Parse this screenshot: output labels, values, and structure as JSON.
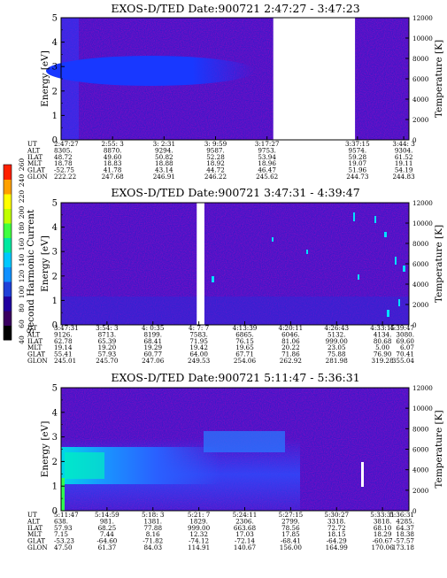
{
  "colorbar": {
    "label": "Second Harmonic Current",
    "ticks": [
      "40",
      "60",
      "80",
      "100",
      "120",
      "140",
      "160",
      "180",
      "200",
      "220",
      "240",
      "260"
    ],
    "colors": [
      "#000000",
      "#3a0060",
      "#2000a0",
      "#2040d8",
      "#1090ff",
      "#00c8ff",
      "#00e8a0",
      "#40ff40",
      "#c0ff00",
      "#ffff00",
      "#ffa000",
      "#ff2000"
    ]
  },
  "chart_data": [
    {
      "type": "heatmap",
      "title": "EXOS-D/TED   Date:900721   2:47:27 - 3:47:23",
      "ylabel": "Energy [eV]",
      "ylabel2": "Temperature [K]",
      "ylim": [
        0,
        5
      ],
      "y2lim": [
        0,
        12000
      ],
      "yticks": [
        "0",
        "1",
        "2",
        "3",
        "4",
        "5"
      ],
      "y2ticks": [
        "0",
        "2000",
        "4000",
        "6000",
        "8000",
        "10000",
        "12000"
      ],
      "gaps": [
        [
          0.61,
          0.845
        ]
      ],
      "row_labels": [
        "UT",
        "ALT",
        "ILAT",
        "MLT",
        "GLAT",
        "GLON"
      ],
      "columns": [
        {
          "x": 0.0,
          "vals": [
            "2:47:27",
            "8305.",
            "48.72",
            "18.78",
            "-52.75",
            "222.22"
          ]
        },
        {
          "x": 0.148,
          "vals": [
            "2:55: 3",
            "8870.",
            "49.60",
            "18.83",
            "41.78",
            "247.68"
          ]
        },
        {
          "x": 0.296,
          "vals": [
            "3: 2:31",
            "9294.",
            "50.82",
            "18.88",
            "43.14",
            "246.91"
          ]
        },
        {
          "x": 0.444,
          "vals": [
            "3: 9:59",
            "9587.",
            "52.28",
            "18.92",
            "44.72",
            "246.22"
          ]
        },
        {
          "x": 0.592,
          "vals": [
            "3:17:27",
            "9753.",
            "53.94",
            "18.96",
            "46.47",
            "245.62"
          ]
        },
        {
          "x": 0.852,
          "vals": [
            "3:37:15",
            "9574.",
            "59.28",
            "19.07",
            "51.96",
            "244.73"
          ]
        },
        {
          "x": 0.985,
          "vals": [
            "3:44: 3",
            "9304.",
            "61.52",
            "19.11",
            "54.19",
            "244.83"
          ]
        }
      ]
    },
    {
      "type": "heatmap",
      "title": "EXOS-D/TED   Date:900721   3:47:31 - 4:39:47",
      "ylabel": "Energy [eV]",
      "ylabel2": "Temperature [K]",
      "ylim": [
        0,
        5
      ],
      "y2lim": [
        0,
        12000
      ],
      "yticks": [
        "0",
        "1",
        "2",
        "3",
        "4",
        "5"
      ],
      "y2ticks": [
        "0",
        "2000",
        "4000",
        "6000",
        "8000",
        "10000",
        "12000"
      ],
      "gaps": [
        [
          0.39,
          0.412
        ]
      ],
      "row_labels": [
        "UT",
        "ALT",
        "ILAT",
        "MLT",
        "GLAT",
        "GLON"
      ],
      "columns": [
        {
          "x": 0.0,
          "vals": [
            "3:47:31",
            "9126.",
            "62.78",
            "19.14",
            "55.41",
            "245.01"
          ]
        },
        {
          "x": 0.132,
          "vals": [
            "3:54: 3",
            "8713.",
            "65.39",
            "19.20",
            "57.93",
            "245.70"
          ]
        },
        {
          "x": 0.264,
          "vals": [
            "4: 0:35",
            "8199.",
            "68.41",
            "19.29",
            "60.77",
            "247.06"
          ]
        },
        {
          "x": 0.396,
          "vals": [
            "4: 7: 7",
            "7583.",
            "71.95",
            "19.42",
            "64.00",
            "249.53"
          ]
        },
        {
          "x": 0.528,
          "vals": [
            "4:13:39",
            "6865.",
            "76.15",
            "19.65",
            "67.71",
            "254.06"
          ]
        },
        {
          "x": 0.66,
          "vals": [
            "4:20:11",
            "6046.",
            "81.06",
            "20.22",
            "71.86",
            "262.92"
          ]
        },
        {
          "x": 0.792,
          "vals": [
            "4:26:43",
            "5132.",
            "999.00",
            "23.05",
            "75.88",
            "281.98"
          ]
        },
        {
          "x": 0.924,
          "vals": [
            "4:33:15",
            "4134.",
            "80.68",
            "5.00",
            "76.90",
            "319.28"
          ]
        },
        {
          "x": 1.0,
          "vals": [
            "4:39:47",
            "3080.",
            "69.60",
            "6.07",
            "70.41",
            "355.04"
          ]
        }
      ]
    },
    {
      "type": "heatmap",
      "title": "EXOS-D/TED   Date:900721   5:11:47 - 5:36:31",
      "ylabel": "Energy [eV]",
      "ylabel2": "Temperature [K]",
      "ylim": [
        0,
        5
      ],
      "y2lim": [
        0,
        12000
      ],
      "yticks": [
        "0",
        "1",
        "2",
        "3",
        "4",
        "5"
      ],
      "y2ticks": [
        "0",
        "2000",
        "4000",
        "6000",
        "8000",
        "10000",
        "12000"
      ],
      "gaps": [],
      "row_labels": [
        "UT",
        "ALT",
        "ILAT",
        "MLT",
        "GLAT",
        "GLON"
      ],
      "columns": [
        {
          "x": 0.0,
          "vals": [
            "5:11:47",
            "638.",
            "57.93",
            "7.15",
            "-53.23",
            "47.50"
          ]
        },
        {
          "x": 0.132,
          "vals": [
            "5:14:59",
            "981.",
            "68.25",
            "7.44",
            "-64.60",
            "61.37"
          ]
        },
        {
          "x": 0.264,
          "vals": [
            "5:18: 3",
            "1381.",
            "77.88",
            "8.16",
            "-71.82",
            "84.03"
          ]
        },
        {
          "x": 0.396,
          "vals": [
            "5:21: 7",
            "1829.",
            "999.00",
            "12.32",
            "-74.12",
            "114.91"
          ]
        },
        {
          "x": 0.528,
          "vals": [
            "5:24:11",
            "2306.",
            "663.68",
            "17.03",
            "-72.14",
            "140.67"
          ]
        },
        {
          "x": 0.66,
          "vals": [
            "5:27:15",
            "2799.",
            "78.56",
            "17.85",
            "-68.41",
            "156.00"
          ]
        },
        {
          "x": 0.792,
          "vals": [
            "5:30:27",
            "3318.",
            "72.72",
            "18.15",
            "-64.29",
            "164.99"
          ]
        },
        {
          "x": 0.924,
          "vals": [
            "5:33:31",
            "3818.",
            "68.10",
            "18.29",
            "-60.67",
            "170.06"
          ]
        },
        {
          "x": 1.0,
          "vals": [
            "5:36:31",
            "4285.",
            "64.37",
            "18.38",
            "-57.57",
            "173.18"
          ]
        }
      ]
    }
  ]
}
